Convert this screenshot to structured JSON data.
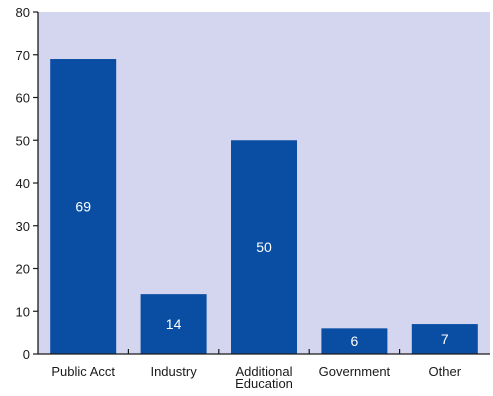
{
  "chart_data": {
    "type": "bar",
    "categories": [
      [
        "Public Acct"
      ],
      [
        "Industry"
      ],
      [
        "Additional",
        "Education"
      ],
      [
        "Government"
      ],
      [
        "Other"
      ]
    ],
    "values": [
      69,
      14,
      50,
      6,
      7
    ],
    "data_labels": [
      "69",
      "14",
      "50",
      "6",
      "7"
    ],
    "y_ticks": [
      0,
      10,
      20,
      30,
      40,
      50,
      60,
      70,
      80
    ],
    "ylim": [
      0,
      80
    ],
    "grid": false,
    "title": "",
    "xlabel": "",
    "ylabel": ""
  },
  "colors": {
    "plot_background": "#d3d6ee",
    "bar": "#0a4ea3",
    "axis": "#1a1a1a",
    "data_label": "#ffffff"
  }
}
